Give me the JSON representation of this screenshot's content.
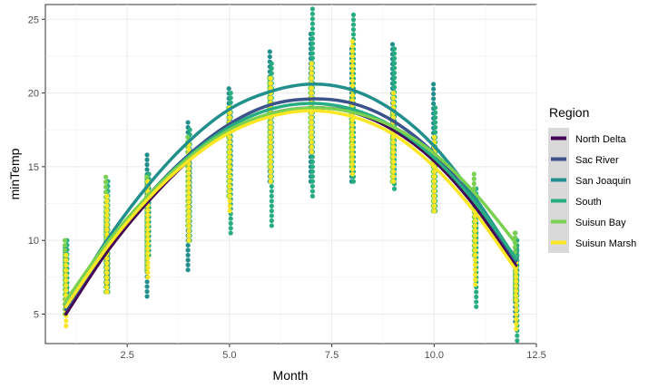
{
  "chart_data": {
    "type": "scatter",
    "xlabel": "Month",
    "ylabel": "minTemp",
    "xlim": [
      0.5,
      12.5
    ],
    "ylim": [
      3,
      26
    ],
    "x_ticks": [
      2.5,
      5.0,
      7.5,
      10.0,
      12.5
    ],
    "x_tick_labels": [
      "2.5",
      "5.0",
      "7.5",
      "10.0",
      "12.5"
    ],
    "y_ticks": [
      5,
      10,
      15,
      20,
      25
    ],
    "y_tick_labels": [
      "5",
      "10",
      "15",
      "20",
      "25"
    ],
    "grid": true,
    "legend": {
      "title": "Region",
      "position": "right"
    },
    "series": [
      {
        "name": "North Delta",
        "color": "#440154",
        "ranges": [
          [
            1,
            5,
            6
          ],
          [
            2,
            7,
            11
          ],
          [
            3,
            11,
            14
          ],
          [
            4,
            13,
            16
          ],
          [
            5,
            16,
            18.5
          ],
          [
            6,
            17,
            20
          ],
          [
            7,
            18,
            21
          ],
          [
            8,
            15.5,
            18.5
          ],
          [
            9,
            15,
            18
          ],
          [
            10,
            13,
            16
          ],
          [
            11,
            10,
            12
          ],
          [
            12,
            7,
            9
          ]
        ],
        "curve": [
          [
            1,
            5
          ],
          [
            2,
            9.2
          ],
          [
            3,
            12.6
          ],
          [
            4,
            15.4
          ],
          [
            5,
            17.4
          ],
          [
            6,
            18.6
          ],
          [
            7,
            19
          ],
          [
            8,
            18.7
          ],
          [
            9,
            17.5
          ],
          [
            10,
            15.4
          ],
          [
            11,
            12.3
          ],
          [
            12,
            8.3
          ]
        ]
      },
      {
        "name": "Sac River",
        "color": "#3B528B",
        "ranges": [
          [
            1,
            5.5,
            7
          ],
          [
            2,
            7,
            11
          ],
          [
            3,
            10,
            14
          ],
          [
            4,
            12,
            16
          ],
          [
            5,
            15,
            19
          ],
          [
            6,
            16,
            21
          ],
          [
            7,
            16,
            22
          ],
          [
            8,
            15,
            20
          ],
          [
            9,
            14,
            19
          ],
          [
            10,
            12,
            17
          ],
          [
            11,
            10,
            13
          ],
          [
            12,
            6.5,
            9.5
          ]
        ],
        "curve": [
          [
            1,
            5.3
          ],
          [
            2,
            9.5
          ],
          [
            3,
            13
          ],
          [
            4,
            15.8
          ],
          [
            5,
            17.9
          ],
          [
            6,
            19.2
          ],
          [
            7,
            19.6
          ],
          [
            8,
            19.3
          ],
          [
            9,
            18.1
          ],
          [
            10,
            15.9
          ],
          [
            11,
            12.6
          ],
          [
            12,
            8.6
          ]
        ]
      },
      {
        "name": "San Joaquin",
        "color": "#21908C",
        "ranges": [
          [
            1,
            6,
            9.5
          ],
          [
            2,
            6.5,
            12
          ],
          [
            3,
            6.2,
            15.8
          ],
          [
            4,
            8,
            18
          ],
          [
            5,
            13,
            20.3
          ],
          [
            6,
            14,
            22.8
          ],
          [
            7,
            14,
            24
          ],
          [
            8,
            14,
            23
          ],
          [
            9,
            14,
            23.3
          ],
          [
            10,
            12,
            20.6
          ],
          [
            11,
            9,
            13.5
          ],
          [
            12,
            4.5,
            10.5
          ]
        ],
        "curve": [
          [
            1,
            5.5
          ],
          [
            2,
            10
          ],
          [
            3,
            13.7
          ],
          [
            4,
            16.7
          ],
          [
            5,
            18.9
          ],
          [
            6,
            20.1
          ],
          [
            7,
            20.6
          ],
          [
            8,
            20.2
          ],
          [
            9,
            18.8
          ],
          [
            10,
            16.4
          ],
          [
            11,
            12.9
          ],
          [
            12,
            8.7
          ]
        ]
      },
      {
        "name": "South",
        "color": "#27AD81",
        "ranges": [
          [
            1,
            6.5,
            10
          ],
          [
            2,
            6.5,
            14
          ],
          [
            3,
            9,
            14.5
          ],
          [
            4,
            10,
            17.5
          ],
          [
            5,
            10.5,
            20
          ],
          [
            6,
            11,
            22
          ],
          [
            7,
            13,
            25.7
          ],
          [
            8,
            14,
            25.3
          ],
          [
            9,
            13.5,
            23
          ],
          [
            10,
            12,
            19
          ],
          [
            11,
            5.5,
            13.5
          ],
          [
            12,
            3.2,
            10
          ]
        ],
        "curve": [
          [
            1,
            5.6
          ],
          [
            2,
            9.6
          ],
          [
            3,
            13
          ],
          [
            4,
            15.7
          ],
          [
            5,
            17.7
          ],
          [
            6,
            18.9
          ],
          [
            7,
            19.3
          ],
          [
            8,
            18.9
          ],
          [
            9,
            17.7
          ],
          [
            10,
            15.6
          ],
          [
            11,
            12.6
          ],
          [
            12,
            8.8
          ]
        ]
      },
      {
        "name": "Suisun Bay",
        "color": "#7AD151",
        "ranges": [
          [
            1,
            5,
            10
          ],
          [
            2,
            6.5,
            14.3
          ],
          [
            3,
            8,
            14.3
          ],
          [
            4,
            11,
            17
          ],
          [
            5,
            13,
            19
          ],
          [
            6,
            15,
            21
          ],
          [
            7,
            17,
            21
          ],
          [
            8,
            15,
            19.5
          ],
          [
            9,
            14,
            18.5
          ],
          [
            10,
            12,
            16
          ],
          [
            11,
            9,
            14.5
          ],
          [
            12,
            6,
            10.5
          ]
        ],
        "curve": [
          [
            1,
            5.9
          ],
          [
            2,
            9.8
          ],
          [
            3,
            13
          ],
          [
            4,
            15.6
          ],
          [
            5,
            17.5
          ],
          [
            6,
            18.6
          ],
          [
            7,
            19
          ],
          [
            8,
            18.7
          ],
          [
            9,
            17.7
          ],
          [
            10,
            15.9
          ],
          [
            11,
            13.2
          ],
          [
            12,
            9.8
          ]
        ]
      },
      {
        "name": "Suisun Marsh",
        "color": "#FDE725",
        "ranges": [
          [
            1,
            4.2,
            9
          ],
          [
            2,
            6.5,
            13
          ],
          [
            3,
            7.5,
            14
          ],
          [
            4,
            10,
            16.5
          ],
          [
            5,
            12,
            19
          ],
          [
            6,
            14,
            21
          ],
          [
            7,
            16,
            22
          ],
          [
            8,
            14.5,
            23.5
          ],
          [
            9,
            14,
            20
          ],
          [
            10,
            12,
            17
          ],
          [
            11,
            7,
            12
          ],
          [
            12,
            4,
            8.5
          ]
        ],
        "curve": [
          [
            1,
            5.5
          ],
          [
            2,
            9.5
          ],
          [
            3,
            12.8
          ],
          [
            4,
            15.4
          ],
          [
            5,
            17.3
          ],
          [
            6,
            18.4
          ],
          [
            7,
            18.8
          ],
          [
            8,
            18.4
          ],
          [
            9,
            17.2
          ],
          [
            10,
            15
          ],
          [
            11,
            11.9
          ],
          [
            12,
            8
          ]
        ]
      }
    ]
  }
}
